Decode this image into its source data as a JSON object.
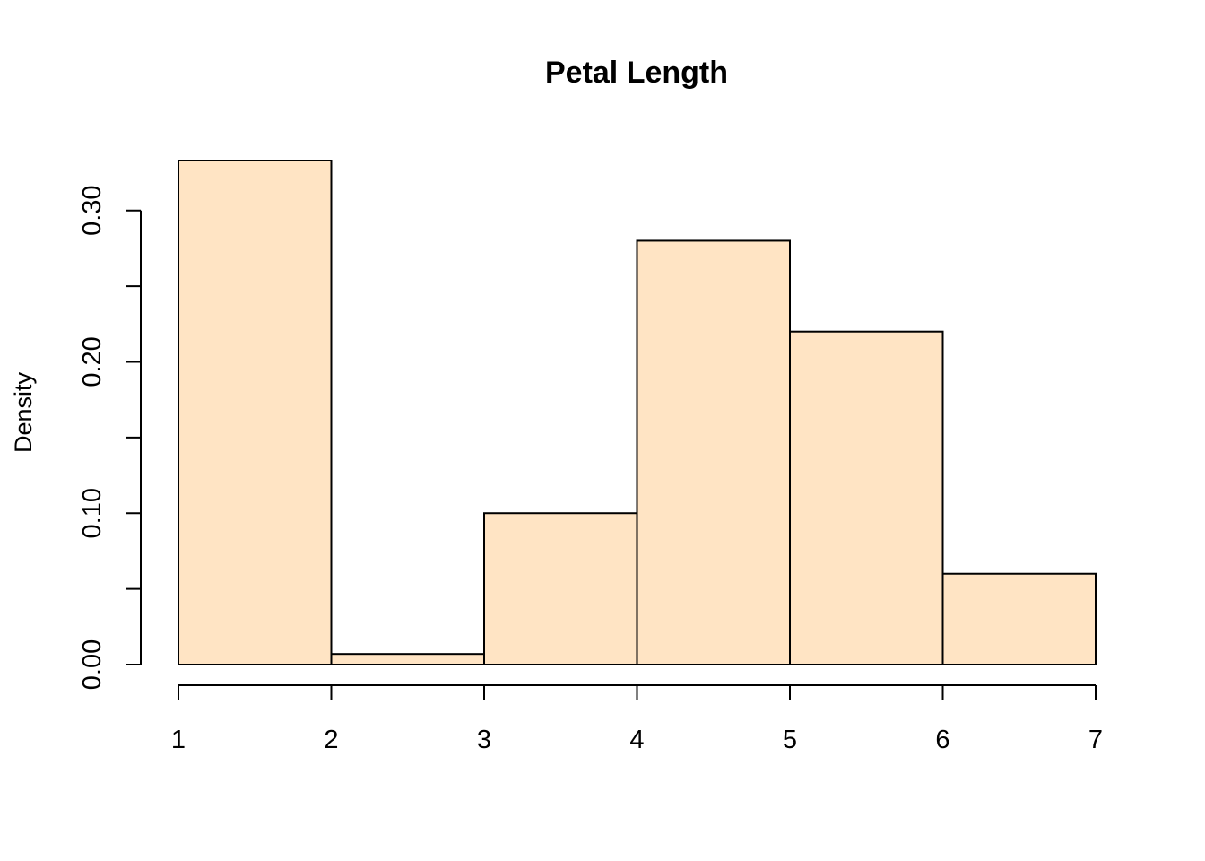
{
  "chart_data": {
    "type": "bar",
    "title": "Petal Length",
    "xlabel": "",
    "ylabel": "Density",
    "bar_color": "#FFE4C4",
    "bin_edges": [
      1,
      2,
      3,
      4,
      5,
      6,
      7
    ],
    "values": [
      0.333,
      0.007,
      0.1,
      0.28,
      0.22,
      0.06
    ],
    "xlim": [
      1,
      7
    ],
    "ylim": [
      0,
      0.333
    ],
    "x_ticks": [
      {
        "value": 1,
        "label": "1"
      },
      {
        "value": 2,
        "label": "2"
      },
      {
        "value": 3,
        "label": "3"
      },
      {
        "value": 4,
        "label": "4"
      },
      {
        "value": 5,
        "label": "5"
      },
      {
        "value": 6,
        "label": "6"
      },
      {
        "value": 7,
        "label": "7"
      }
    ],
    "y_ticks": [
      {
        "value": 0,
        "label": "0.00"
      },
      {
        "value": 0.05,
        "label": ""
      },
      {
        "value": 0.1,
        "label": "0.10"
      },
      {
        "value": 0.15,
        "label": ""
      },
      {
        "value": 0.2,
        "label": "0.20"
      },
      {
        "value": 0.25,
        "label": ""
      },
      {
        "value": 0.3,
        "label": "0.30"
      }
    ],
    "grid": false,
    "legend": "none"
  }
}
